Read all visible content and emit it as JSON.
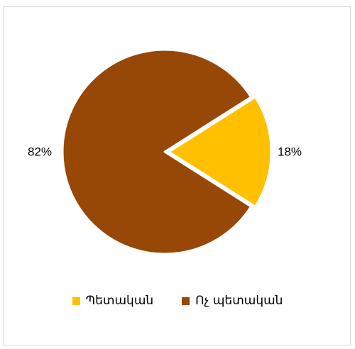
{
  "chart_data": {
    "type": "pie",
    "title": "",
    "categories": [
      "Պետական",
      "Ոչ պետական"
    ],
    "values": [
      18,
      82
    ],
    "data_labels": [
      "18%",
      "82%"
    ],
    "colors": [
      "#ffc000",
      "#974706"
    ],
    "exploded": [
      true,
      false
    ],
    "legend_position": "bottom"
  }
}
